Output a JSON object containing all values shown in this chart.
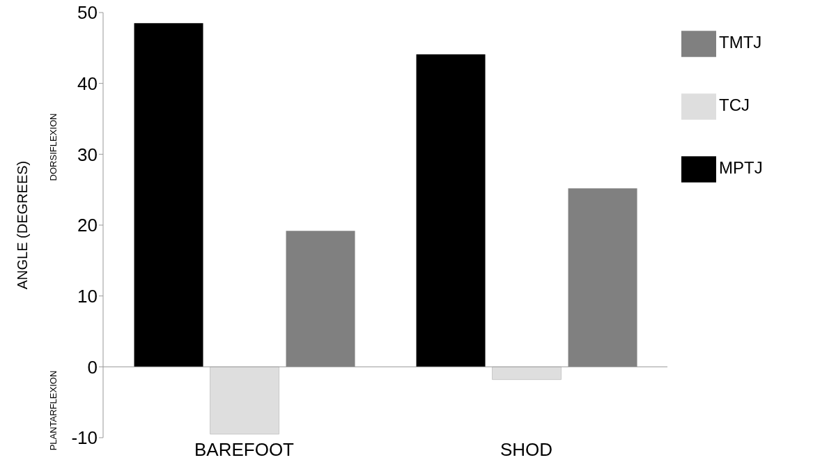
{
  "chart_data": {
    "type": "bar",
    "ylabel": "ANGLE (DEGREES)",
    "categories": [
      "BAREFOOT",
      "SHOD"
    ],
    "series": [
      {
        "name": "MPTJ",
        "color": "#000000",
        "values": [
          48.5,
          44.1
        ]
      },
      {
        "name": "TCJ",
        "color": "#dedede",
        "values": [
          -9.5,
          -1.8
        ]
      },
      {
        "name": "TMTJ",
        "color": "#808080",
        "values": [
          19.2,
          25.2
        ]
      }
    ],
    "ref_lines": [
      {
        "axis": "y",
        "value": 0,
        "color": "#999999"
      }
    ],
    "ylim": [
      -10,
      50
    ],
    "yticks": [
      -10,
      0,
      10,
      20,
      30,
      40,
      50
    ],
    "grid": false,
    "legend": "right",
    "annotations": [
      "DORSIFLEXION",
      "PLANTARFLEXION"
    ]
  }
}
